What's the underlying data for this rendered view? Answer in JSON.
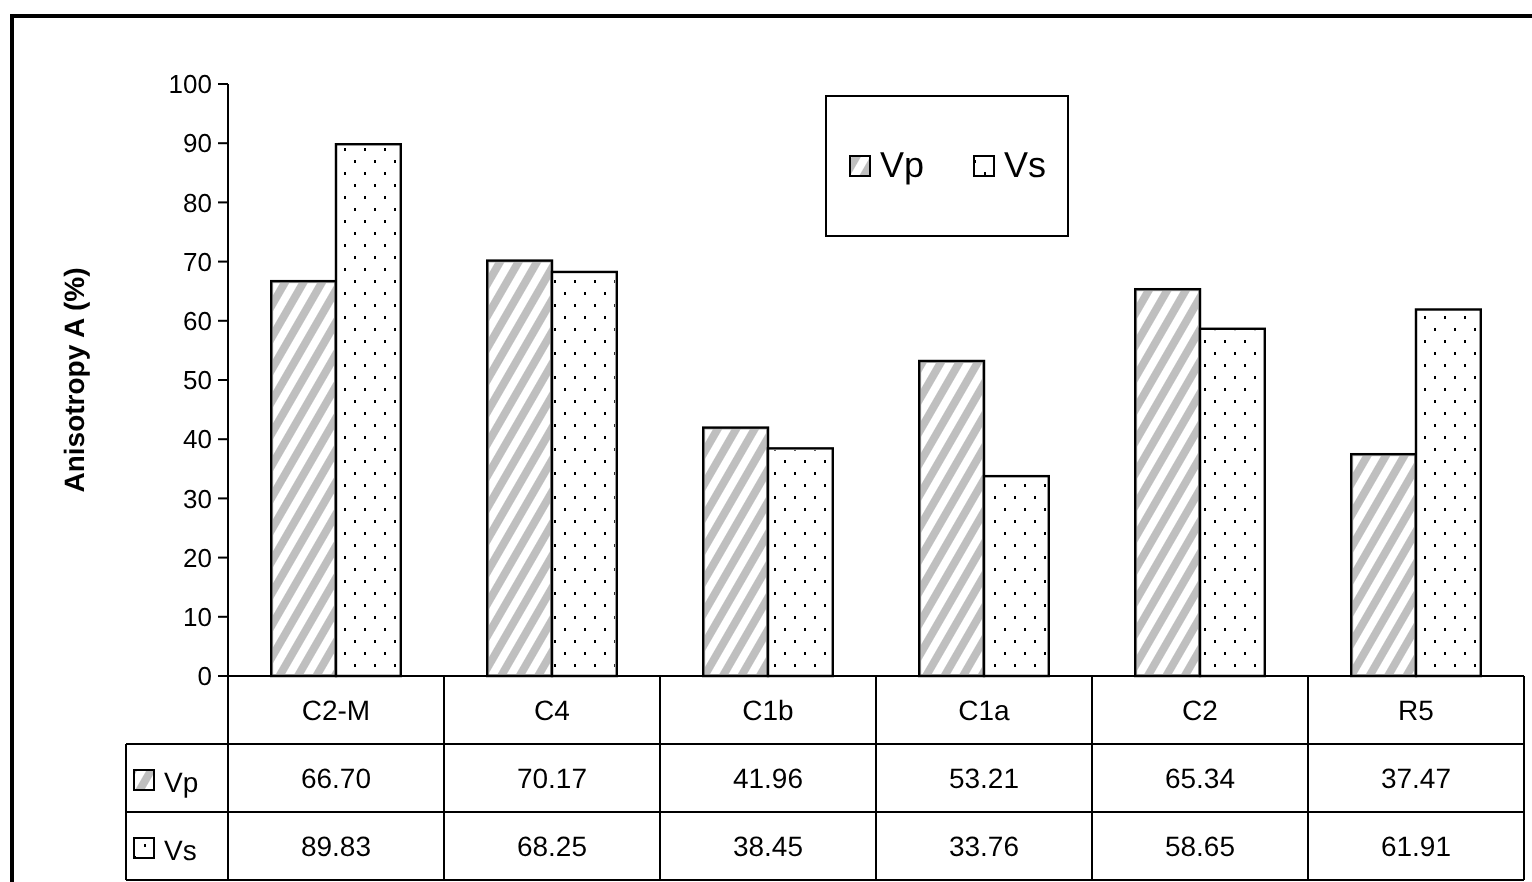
{
  "chart_data": {
    "type": "bar",
    "ylabel": "Anisotropy A (%)",
    "categories": [
      "C2-M",
      "C4",
      "C1b",
      "C1a",
      "C2",
      "R5"
    ],
    "series": [
      {
        "name": "Vp",
        "color": "#bfbfbf",
        "values": [
          66.7,
          70.17,
          41.96,
          53.21,
          65.34,
          37.47
        ],
        "value_labels": [
          "66.70",
          "70.17",
          "41.96",
          "53.21",
          "65.34",
          "37.47"
        ]
      },
      {
        "name": "Vs",
        "color": "#ffffff",
        "values": [
          89.83,
          68.25,
          38.45,
          33.76,
          58.65,
          61.91
        ],
        "value_labels": [
          "89.83",
          "68.25",
          "38.45",
          "33.76",
          "58.65",
          "61.91"
        ]
      }
    ],
    "ylim": [
      0,
      100
    ],
    "yticks": [
      0,
      10,
      20,
      30,
      40,
      50,
      60,
      70,
      80,
      90,
      100
    ],
    "grid": false,
    "legend": "top"
  }
}
